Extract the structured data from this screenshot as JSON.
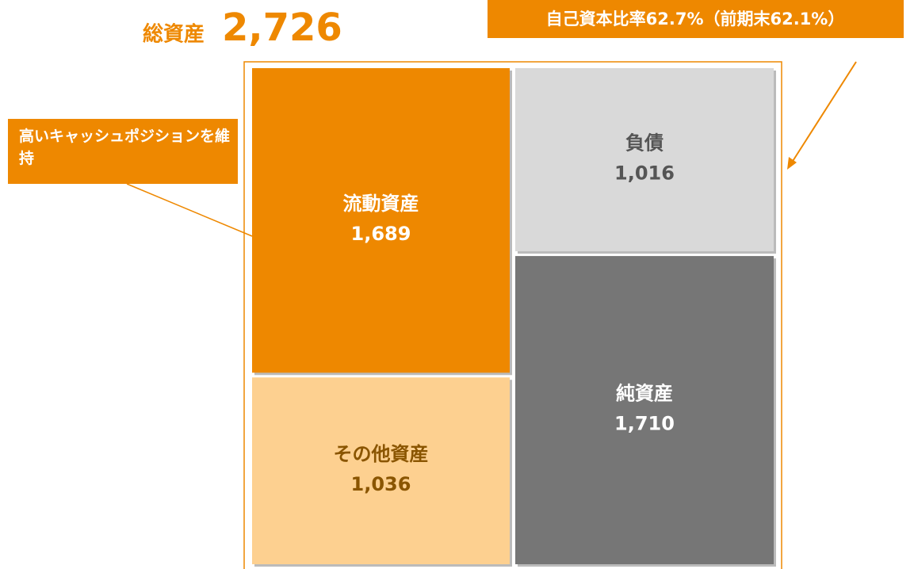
{
  "chart_data": {
    "type": "bar",
    "stacked": true,
    "title": "総資産",
    "total": 2726,
    "total_label": "2,726",
    "categories": [
      null,
      null
    ],
    "series": [
      {
        "name": "流動資産",
        "color": "#ee8800",
        "values": [
          1689,
          null
        ],
        "value_labels": [
          "1,689",
          null
        ]
      },
      {
        "name": "その他資産",
        "color": "#fdd090",
        "values": [
          1036,
          null
        ],
        "value_labels": [
          "1,036",
          null
        ]
      },
      {
        "name": "負債",
        "color": "#d9d9d9",
        "values": [
          null,
          1016
        ],
        "value_labels": [
          null,
          "1,016"
        ]
      },
      {
        "name": "純資産",
        "color": "#767676",
        "values": [
          null,
          1710
        ],
        "value_labels": [
          null,
          "1,710"
        ]
      }
    ],
    "annotations": [
      "自己資本比率62.7%（前期末62.1%）",
      "高いキャッシュポジションを維持"
    ]
  }
}
